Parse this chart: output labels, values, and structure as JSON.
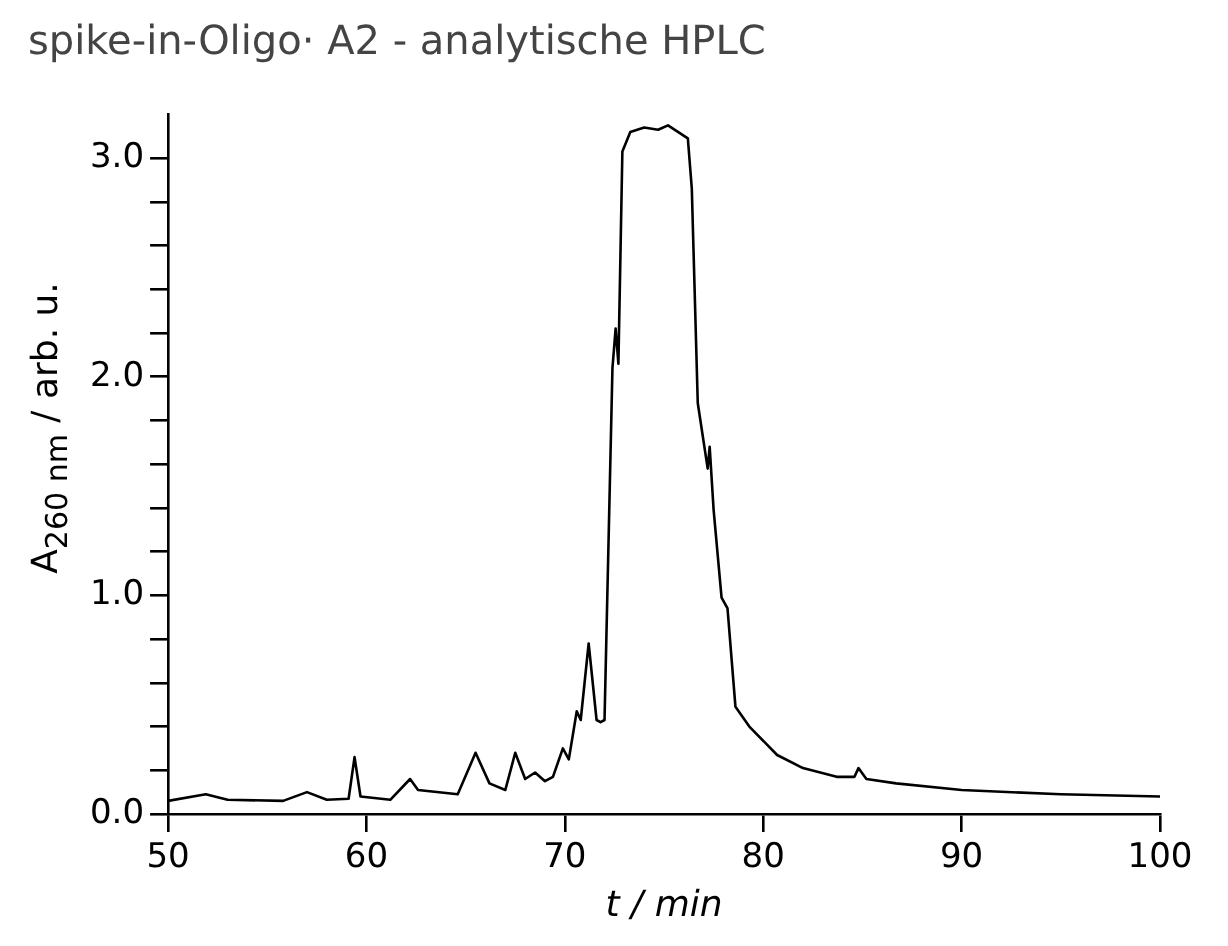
{
  "chart_data": {
    "type": "line",
    "title": "spike-in-Oligo· A2 - analytische HPLC",
    "xlabel": "t / min",
    "ylabel": "A$_{260 nm}$ / arb. u.",
    "x": [
      50,
      51.9,
      53,
      55.8,
      57,
      58,
      59.1,
      59.4,
      59.7,
      61.2,
      62.2,
      62.6,
      64.6,
      65.5,
      66.2,
      67,
      67.5,
      68,
      68.5,
      69,
      69.4,
      69.9,
      70.2,
      70.6,
      70.8,
      71.2,
      71.6,
      71.8,
      72,
      72.4,
      72.56,
      72.7,
      72.9,
      73.3,
      74,
      74.7,
      75.2,
      75.7,
      76.2,
      76.4,
      76.7,
      77.2,
      77.3,
      77.5,
      77.9,
      78.2,
      78.6,
      79.3,
      80.7,
      82,
      83.7,
      84.6,
      84.8,
      85.2,
      86.7,
      90,
      95,
      100
    ],
    "series": [
      {
        "color": "#000000",
        "values": [
          0.06,
          0.09,
          0.065,
          0.06,
          0.1,
          0.065,
          0.07,
          0.26,
          0.08,
          0.065,
          0.16,
          0.11,
          0.09,
          0.28,
          0.14,
          0.11,
          0.28,
          0.16,
          0.19,
          0.15,
          0.17,
          0.3,
          0.25,
          0.47,
          0.43,
          0.78,
          0.43,
          0.42,
          0.43,
          2.04,
          2.22,
          2.06,
          3.03,
          3.12,
          3.14,
          3.13,
          3.15,
          3.12,
          3.09,
          2.86,
          1.88,
          1.58,
          1.68,
          1.39,
          0.99,
          0.94,
          0.49,
          0.4,
          0.27,
          0.21,
          0.17,
          0.17,
          0.21,
          0.16,
          0.14,
          0.11,
          0.09,
          0.08
        ]
      }
    ],
    "xlim": [
      50,
      100
    ],
    "xticks": [
      50,
      60,
      70,
      80,
      90,
      100
    ],
    "ylim": [
      0,
      3.2
    ],
    "yticks": [
      {
        "value": 0,
        "label": "0.0"
      },
      {
        "value": 0.2,
        "label": null
      },
      {
        "value": 0.4,
        "label": null
      },
      {
        "value": 0.6,
        "label": null
      },
      {
        "value": 0.8,
        "label": null
      },
      {
        "value": 1,
        "label": "1.0"
      },
      {
        "value": 1.2,
        "label": null
      },
      {
        "value": 1.4,
        "label": null
      },
      {
        "value": 1.6,
        "label": null
      },
      {
        "value": 1.8,
        "label": null
      },
      {
        "value": 2,
        "label": "2.0"
      },
      {
        "value": 2.2,
        "label": null
      },
      {
        "value": 2.4,
        "label": null
      },
      {
        "value": 2.6,
        "label": null
      },
      {
        "value": 2.8,
        "label": null
      },
      {
        "value": 3,
        "label": "3.0"
      }
    ],
    "grid": false,
    "legend": false,
    "marker": "none",
    "line_style": "solid"
  }
}
